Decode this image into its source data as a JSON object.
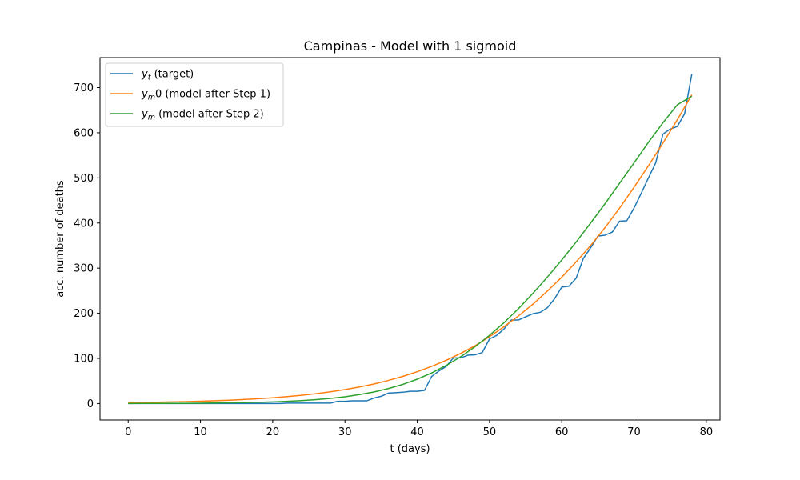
{
  "chart_data": {
    "type": "line",
    "title": "Campinas - Model with 1 sigmoid",
    "xlabel": "t (days)",
    "ylabel": "acc. number of deaths",
    "xlim": [
      -3.9,
      81.9
    ],
    "ylim": [
      -36.5,
      766.5
    ],
    "xticks": [
      0,
      10,
      20,
      30,
      40,
      50,
      60,
      70,
      80
    ],
    "yticks": [
      0,
      100,
      200,
      300,
      400,
      500,
      600,
      700
    ],
    "grid": false,
    "legend_position": "top-left",
    "series": [
      {
        "name": "y_t (target)",
        "legend": {
          "base": "y",
          "sub": "t",
          "suffix": " (target)"
        },
        "color": "#1f77b4",
        "x": [
          0,
          1,
          2,
          3,
          4,
          5,
          6,
          7,
          8,
          9,
          10,
          11,
          12,
          13,
          14,
          15,
          16,
          17,
          18,
          19,
          20,
          21,
          22,
          23,
          24,
          25,
          26,
          27,
          28,
          29,
          30,
          31,
          32,
          33,
          34,
          35,
          36,
          37,
          38,
          39,
          40,
          41,
          42,
          43,
          44,
          45,
          46,
          47,
          48,
          49,
          50,
          51,
          52,
          53,
          54,
          55,
          56,
          57,
          58,
          59,
          60,
          61,
          62,
          63,
          64,
          65,
          66,
          67,
          68,
          69,
          70,
          71,
          72,
          73,
          74,
          75,
          76,
          77,
          78
        ],
        "y": [
          0,
          0,
          0,
          0,
          0,
          0,
          0,
          0,
          0,
          0,
          0,
          0,
          0,
          0,
          0,
          0,
          0,
          0,
          0,
          0,
          0,
          0,
          1,
          1,
          1,
          1,
          1,
          1,
          1,
          5,
          5,
          6,
          6,
          6,
          12,
          16,
          23,
          24,
          25,
          27,
          27,
          29,
          60,
          72,
          82,
          101,
          101,
          107,
          108,
          113,
          143,
          151,
          165,
          185,
          185,
          192,
          199,
          202,
          212,
          232,
          258,
          260,
          278,
          322,
          345,
          371,
          373,
          380,
          404,
          405,
          433,
          466,
          500,
          533,
          597,
          608,
          614,
          642,
          730
        ]
      },
      {
        "name": "y_m0 (model after Step 1)",
        "legend": {
          "base": "y",
          "sub": "m",
          "suffix": "0 (model after Step 1)"
        },
        "color": "#ff7f0e",
        "x": [
          0,
          2,
          4,
          6,
          8,
          10,
          12,
          14,
          16,
          18,
          20,
          22,
          24,
          26,
          28,
          30,
          32,
          34,
          36,
          38,
          40,
          42,
          44,
          46,
          48,
          50,
          52,
          54,
          56,
          58,
          60,
          62,
          64,
          66,
          68,
          70,
          72,
          74,
          76,
          78
        ],
        "y": [
          2,
          2.4,
          2.9,
          3.6,
          4.3,
          5.2,
          6.2,
          7.4,
          8.9,
          10.7,
          12.8,
          15.3,
          18.3,
          21.8,
          26,
          30.9,
          36.6,
          43.3,
          51.1,
          60.1,
          70.4,
          82.3,
          95.7,
          111,
          128,
          148,
          170,
          194,
          220,
          249,
          280,
          314,
          350,
          390,
          433,
          479,
          527,
          577,
          629,
          684
        ]
      },
      {
        "name": "y_m (model after Step 2)",
        "legend": {
          "base": "y",
          "sub": "m",
          "suffix": " (model after Step 2)"
        },
        "color": "#2ca02c",
        "x": [
          0,
          2,
          4,
          6,
          8,
          10,
          12,
          14,
          16,
          18,
          20,
          22,
          24,
          26,
          28,
          30,
          32,
          34,
          36,
          38,
          40,
          42,
          44,
          46,
          48,
          50,
          52,
          54,
          56,
          58,
          60,
          62,
          64,
          66,
          68,
          70,
          72,
          74,
          76,
          78
        ],
        "y": [
          0.1,
          0.2,
          0.3,
          0.4,
          0.6,
          0.8,
          1.1,
          1.5,
          2,
          2.7,
          3.6,
          4.9,
          6.5,
          8.6,
          11.4,
          15,
          19.7,
          25.6,
          33.1,
          42.4,
          53.9,
          67.8,
          84.3,
          103.6,
          125.8,
          151,
          179,
          210,
          244,
          280,
          318,
          358,
          400,
          443,
          488,
          533,
          579,
          622,
          662,
          681
        ]
      }
    ]
  }
}
